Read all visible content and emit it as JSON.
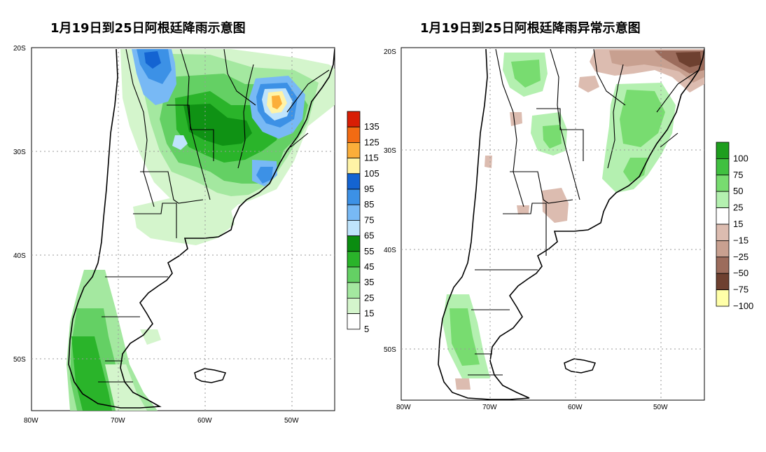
{
  "left_map": {
    "title": "1月19日到25日阿根廷降雨示意图",
    "lat_labels": [
      "20S",
      "30S",
      "40S",
      "50S"
    ],
    "lon_labels": [
      "80W",
      "70W",
      "60W",
      "50W"
    ],
    "legend": {
      "labels": [
        "135",
        "125",
        "115",
        "105",
        "95",
        "85",
        "75",
        "65",
        "55",
        "45",
        "35",
        "25",
        "15",
        "5"
      ],
      "colors": [
        "#d81e05",
        "#f26b13",
        "#fbae3a",
        "#fff3a6",
        "#1464d2",
        "#3c91e6",
        "#78b9f5",
        "#bfe4fc",
        "#0a8c10",
        "#2ab42a",
        "#64d064",
        "#a4e8a0",
        "#d4f5cc",
        "#ffffff"
      ]
    }
  },
  "right_map": {
    "title": "1月19日到25日阿根廷降雨异常示意图",
    "lat_labels": [
      "20S",
      "30S",
      "40S",
      "50S"
    ],
    "lon_labels": [
      "80W",
      "70W",
      "60W",
      "50W"
    ],
    "legend": {
      "labels": [
        "100",
        "75",
        "50",
        "25",
        "15",
        "−15",
        "−25",
        "−50",
        "−75",
        "−100"
      ],
      "colors": [
        "#1e9e1e",
        "#40c040",
        "#78dc70",
        "#b4f0b0",
        "#ffffff",
        "#dcbcb0",
        "#c8a090",
        "#9c6c5c",
        "#6e4030",
        "#ffffa8"
      ]
    }
  }
}
